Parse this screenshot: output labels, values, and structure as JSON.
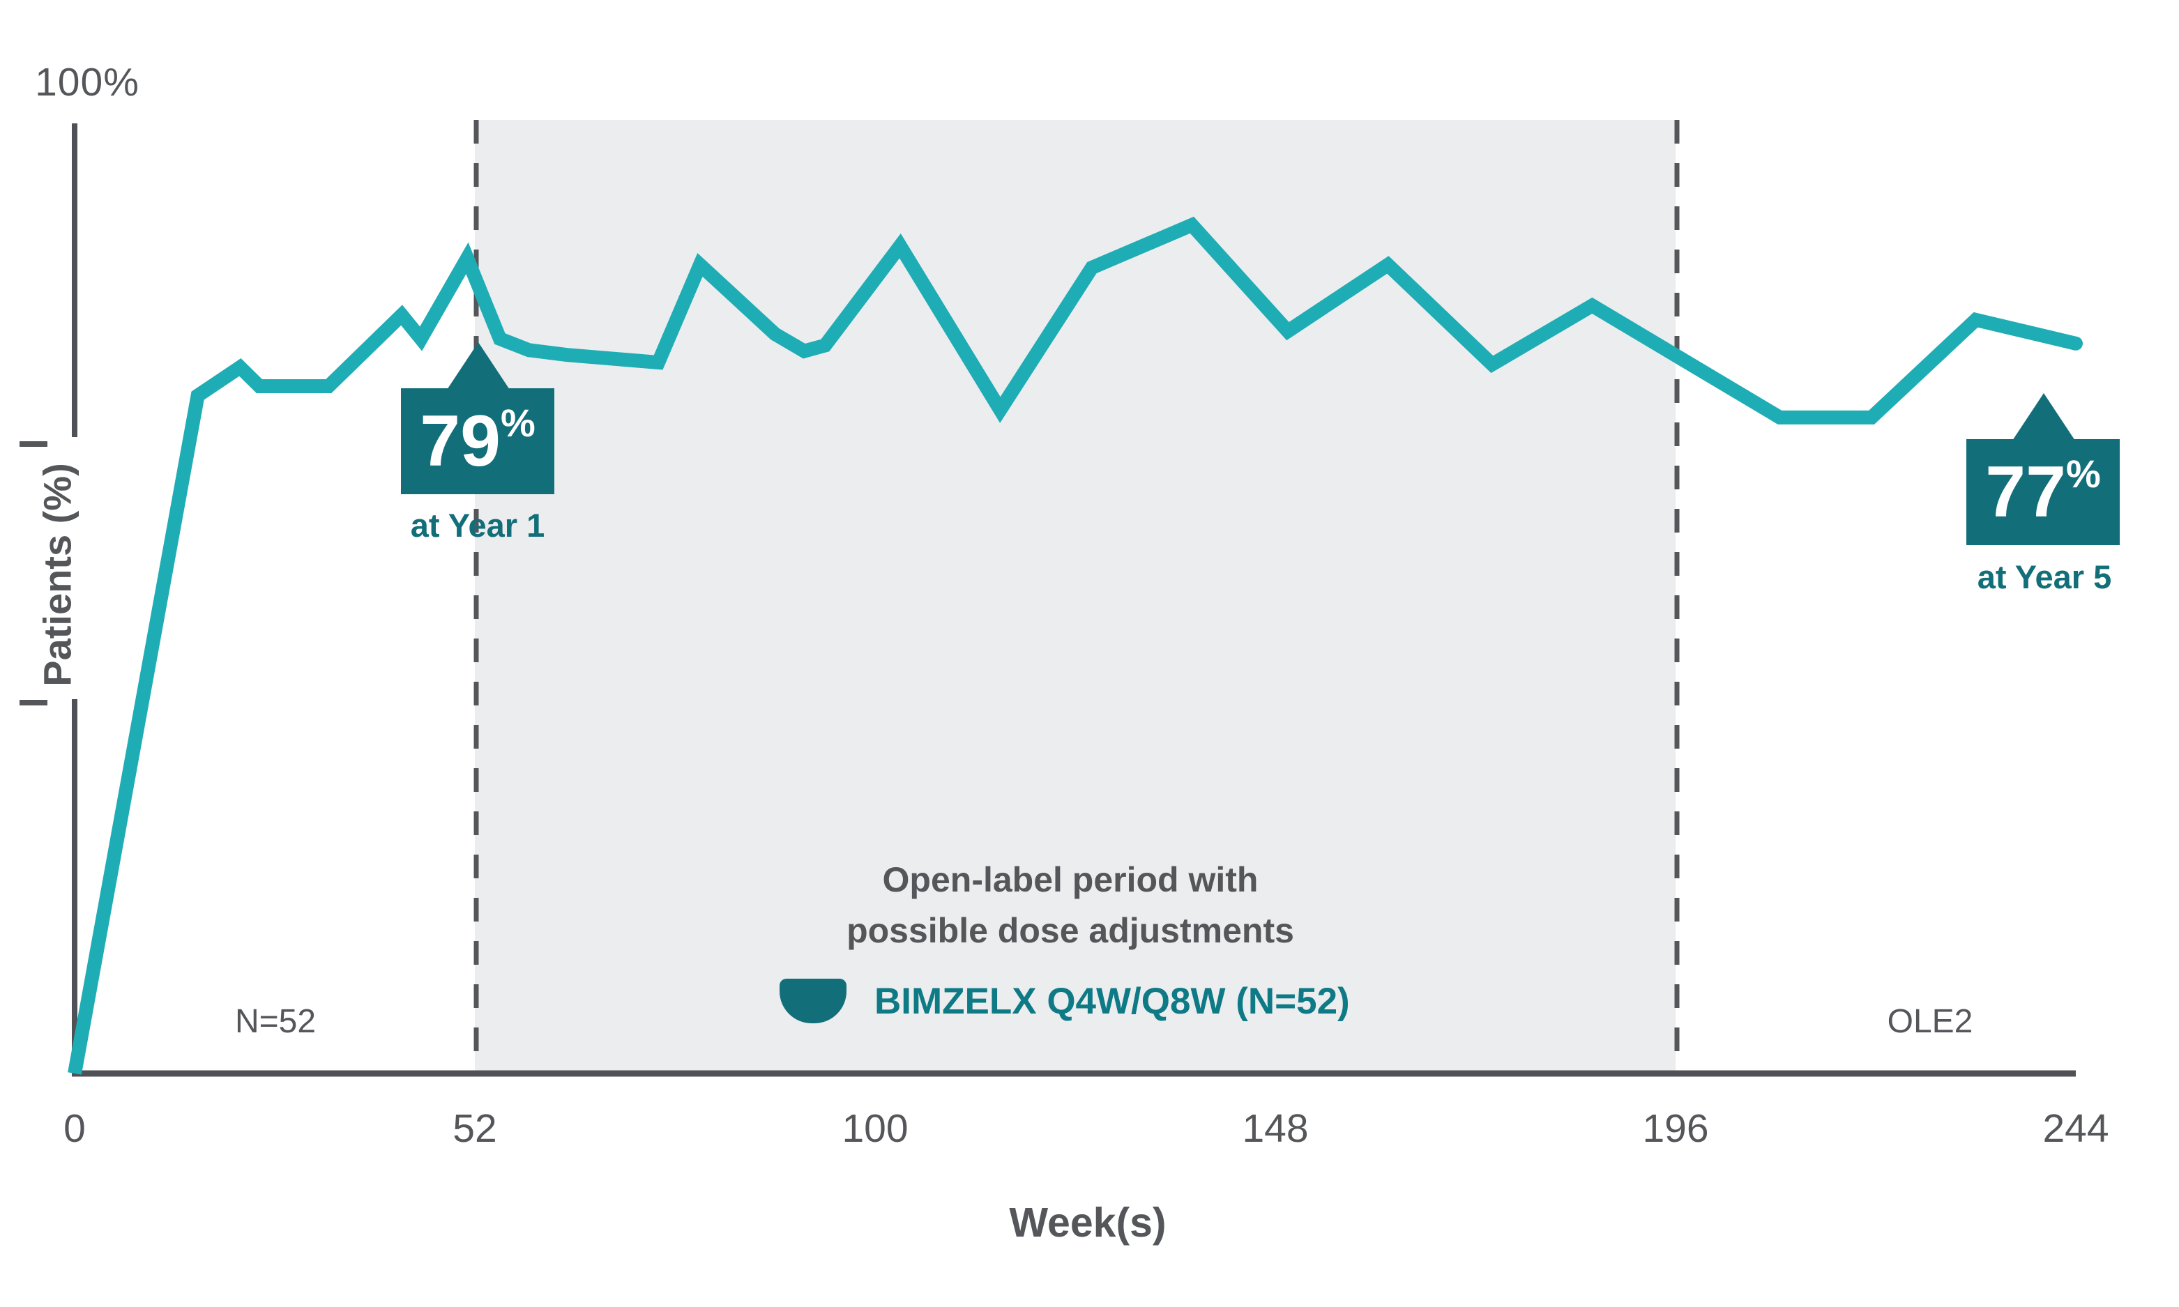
{
  "colors": {
    "line_teal": "#1FADB5",
    "dark_teal": "#126F79",
    "legend_teal": "#0E7A85",
    "text_gray": "#54565A",
    "axis_gray": "#4E5256",
    "shaded_region_gray": "#ECEDEF"
  },
  "axes": {
    "y_top_label": "100%",
    "y_label": "Patients (%)",
    "x_label": "Week(s)"
  },
  "regions": {
    "n52_label": "N=52",
    "ole2_label": "OLE2",
    "open_label_line1": "Open-label period with",
    "open_label_line2": "possible dose adjustments"
  },
  "legend": {
    "label": "BIMZELX Q4W/Q8W (N=52)"
  },
  "annotations": {
    "year1": {
      "value": "79",
      "pct_sign": "%",
      "caption": "at Year 1"
    },
    "year5": {
      "value": "77",
      "pct_sign": "%",
      "caption": "at Year 5"
    }
  },
  "chart_data": {
    "type": "line",
    "title": "",
    "xlabel": "Week(s)",
    "ylabel": "Patients (%)",
    "xlim": [
      0,
      244
    ],
    "ylim": [
      0,
      100
    ],
    "x_ticks": [
      0,
      52,
      100,
      148,
      196,
      244
    ],
    "grid": false,
    "legend_position": "bottom-center",
    "shaded_region_weeks": [
      52,
      196
    ],
    "shaded_region_label": "Open-label period with possible dose adjustments",
    "series": [
      {
        "name": "BIMZELX Q4W/Q8W (N=52)",
        "color": "#1FADB5",
        "points_week_pct": [
          [
            0,
            0
          ],
          [
            16,
            71.5
          ],
          [
            21.5,
            74.5
          ],
          [
            24,
            72.5
          ],
          [
            33,
            72.5
          ],
          [
            42.5,
            80
          ],
          [
            45,
            77.5
          ],
          [
            51,
            86
          ],
          [
            55,
            77.5
          ],
          [
            58.5,
            76.3
          ],
          [
            63,
            75.8
          ],
          [
            74,
            75
          ],
          [
            79,
            85.3
          ],
          [
            88,
            78
          ],
          [
            91.5,
            76.2
          ],
          [
            94,
            76.8
          ],
          [
            103,
            87.3
          ],
          [
            115,
            70
          ],
          [
            126,
            85
          ],
          [
            138,
            89.5
          ],
          [
            149.5,
            78.3
          ],
          [
            161.5,
            85.3
          ],
          [
            174,
            74.8
          ],
          [
            186,
            81
          ],
          [
            208.5,
            69.2
          ],
          [
            219.5,
            69.2
          ],
          [
            232,
            79.5
          ],
          [
            244,
            77
          ]
        ]
      }
    ],
    "key_values": [
      {
        "week": 52,
        "pct": 79,
        "label": "at Year 1"
      },
      {
        "week": 244,
        "pct": 77,
        "label": "at Year 5"
      }
    ]
  }
}
